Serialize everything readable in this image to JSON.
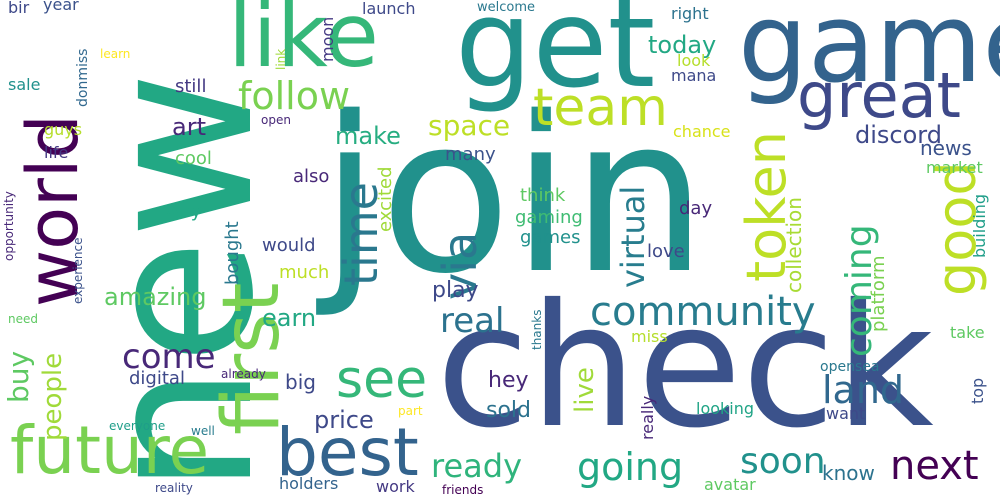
{
  "words": [
    {
      "text": "join",
      "color": "#21918c"
    },
    {
      "text": "new",
      "color": "#22a884"
    },
    {
      "text": "check",
      "color": "#3b528b"
    },
    {
      "text": "game",
      "color": "#33638d"
    },
    {
      "text": "get",
      "color": "#21918c"
    },
    {
      "text": "like",
      "color": "#35b779"
    },
    {
      "text": "world",
      "color": "#440154"
    },
    {
      "text": "first",
      "color": "#7ad151"
    },
    {
      "text": "future",
      "color": "#7ad151"
    },
    {
      "text": "best",
      "color": "#33638d"
    },
    {
      "text": "great",
      "color": "#3e4989"
    },
    {
      "text": "team",
      "color": "#bddf26"
    },
    {
      "text": "token",
      "color": "#bddf26"
    },
    {
      "text": "see",
      "color": "#35b779"
    },
    {
      "text": "time",
      "color": "#2a788e"
    },
    {
      "text": "good",
      "color": "#bddf26"
    },
    {
      "text": "via",
      "color": "#2a788e"
    },
    {
      "text": "follow",
      "color": "#7ad151"
    },
    {
      "text": "community",
      "color": "#287c8e"
    },
    {
      "text": "coming",
      "color": "#35b779"
    },
    {
      "text": "next",
      "color": "#440154"
    },
    {
      "text": "going",
      "color": "#22a884"
    },
    {
      "text": "soon",
      "color": "#21918c"
    },
    {
      "text": "ready",
      "color": "#2fb47c"
    },
    {
      "text": "land",
      "color": "#31688e"
    },
    {
      "text": "real",
      "color": "#2c728e"
    },
    {
      "text": "come",
      "color": "#482878"
    },
    {
      "text": "virtual",
      "color": "#287d8e"
    },
    {
      "text": "people",
      "color": "#a0da39"
    },
    {
      "text": "buy",
      "color": "#5ec962"
    },
    {
      "text": "space",
      "color": "#bddf26"
    },
    {
      "text": "discord",
      "color": "#3e4989"
    },
    {
      "text": "amazing",
      "color": "#5ec962"
    },
    {
      "text": "art",
      "color": "#482878"
    },
    {
      "text": "today",
      "color": "#22a884"
    },
    {
      "text": "make",
      "color": "#27ad81"
    },
    {
      "text": "price",
      "color": "#3e4989"
    },
    {
      "text": "earn",
      "color": "#22a884"
    },
    {
      "text": "live",
      "color": "#a0da39"
    },
    {
      "text": "play",
      "color": "#3e4989"
    },
    {
      "text": "hey",
      "color": "#482878"
    },
    {
      "text": "sold",
      "color": "#2c728e"
    },
    {
      "text": "news",
      "color": "#3b528b"
    },
    {
      "text": "digital",
      "color": "#3e4989"
    },
    {
      "text": "big",
      "color": "#3e4989"
    },
    {
      "text": "know",
      "color": "#2c728e"
    },
    {
      "text": "collection",
      "color": "#a8db34"
    },
    {
      "text": "platform",
      "color": "#7ad151"
    },
    {
      "text": "excited",
      "color": "#a0da39"
    },
    {
      "text": "gaming",
      "color": "#3fbc73"
    },
    {
      "text": "games",
      "color": "#21918c"
    },
    {
      "text": "think",
      "color": "#5ec962"
    },
    {
      "text": "still",
      "color": "#443983"
    },
    {
      "text": "cool",
      "color": "#5ec962"
    },
    {
      "text": "many",
      "color": "#3b528b"
    },
    {
      "text": "also",
      "color": "#482878"
    },
    {
      "text": "way",
      "color": "#22a884"
    },
    {
      "text": "would",
      "color": "#3e4989"
    },
    {
      "text": "much",
      "color": "#bddf26"
    },
    {
      "text": "bought",
      "color": "#2a788e"
    },
    {
      "text": "day",
      "color": "#482878"
    },
    {
      "text": "love",
      "color": "#3e4989"
    },
    {
      "text": "market",
      "color": "#5ec962"
    },
    {
      "text": "building",
      "color": "#1f9e89"
    },
    {
      "text": "top",
      "color": "#3b528b"
    },
    {
      "text": "take",
      "color": "#5ec962"
    },
    {
      "text": "looking",
      "color": "#20a486"
    },
    {
      "text": "want",
      "color": "#3e4989"
    },
    {
      "text": "opensea",
      "color": "#2a788e"
    },
    {
      "text": "really",
      "color": "#482878"
    },
    {
      "text": "miss",
      "color": "#b5de2b"
    },
    {
      "text": "thanks",
      "color": "#2a788e"
    },
    {
      "text": "part",
      "color": "#fde725"
    },
    {
      "text": "work",
      "color": "#443983"
    },
    {
      "text": "holders",
      "color": "#33638d"
    },
    {
      "text": "avatar",
      "color": "#5ec962"
    },
    {
      "text": "friends",
      "color": "#440154"
    },
    {
      "text": "reality",
      "color": "#3e4989"
    },
    {
      "text": "everyone",
      "color": "#1f9e89"
    },
    {
      "text": "well",
      "color": "#287c8e"
    },
    {
      "text": "already",
      "color": "#482878"
    },
    {
      "text": "need",
      "color": "#5ec962"
    },
    {
      "text": "experience",
      "color": "#3b528b"
    },
    {
      "text": "opportunity",
      "color": "#482878"
    },
    {
      "text": "life",
      "color": "#443983"
    },
    {
      "text": "guys",
      "color": "#b5de2b"
    },
    {
      "text": "sale",
      "color": "#21918c"
    },
    {
      "text": "donmiss",
      "color": "#31688e"
    },
    {
      "text": "year",
      "color": "#3b528b"
    },
    {
      "text": "bir",
      "color": "#3e4989"
    },
    {
      "text": "learn",
      "color": "#fde725"
    },
    {
      "text": "link",
      "color": "#a0da39"
    },
    {
      "text": "moon",
      "color": "#443983"
    },
    {
      "text": "launch",
      "color": "#3e4989"
    },
    {
      "text": "welcome",
      "color": "#2a788e"
    },
    {
      "text": "right",
      "color": "#2c728e"
    },
    {
      "text": "look",
      "color": "#b5de2b"
    },
    {
      "text": "mana",
      "color": "#3e4989"
    },
    {
      "text": "open",
      "color": "#482878"
    },
    {
      "text": "chance",
      "color": "#d8e219"
    }
  ]
}
